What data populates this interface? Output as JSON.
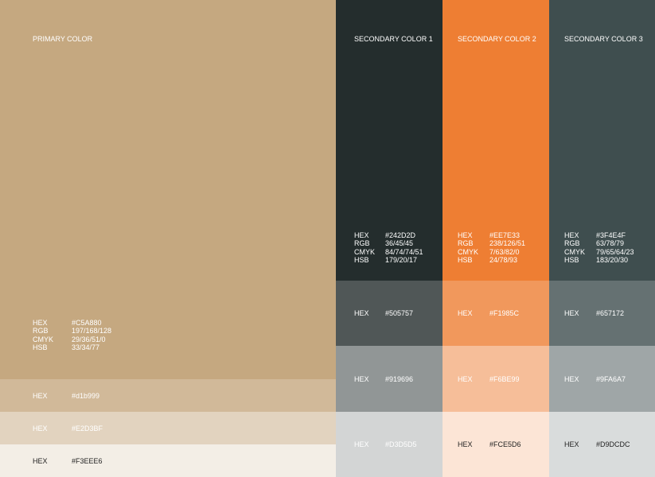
{
  "primary": {
    "title": "PRIMARY COLOR",
    "specs": [
      [
        "HEX",
        "#C5A880"
      ],
      [
        "RGB",
        "197/168/128"
      ],
      [
        "CMYK",
        "29/36/51/0"
      ],
      [
        "HSB",
        "33/34/77"
      ]
    ],
    "tints": [
      [
        "HEX",
        "#d1b999"
      ],
      [
        "HEX",
        "#E2D3BF"
      ],
      [
        "HEX",
        "#F3EEE6"
      ]
    ]
  },
  "secondary": [
    {
      "title": "SECONDARY COLOR 1",
      "specs": [
        [
          "HEX",
          "#242D2D"
        ],
        [
          "RGB",
          "36/45/45"
        ],
        [
          "CMYK",
          "84/74/74/51"
        ],
        [
          "HSB",
          "179/20/17"
        ]
      ],
      "tints": [
        [
          "HEX",
          "#505757"
        ],
        [
          "HEX",
          "#919696"
        ],
        [
          "HEX",
          "#D3D5D5"
        ]
      ]
    },
    {
      "title": "SECONDARY COLOR 2",
      "specs": [
        [
          "HEX",
          "#EE7E33"
        ],
        [
          "RGB",
          "238/126/51"
        ],
        [
          "CMYK",
          "7/63/82/0"
        ],
        [
          "HSB",
          "24/78/93"
        ]
      ],
      "tints": [
        [
          "HEX",
          "#F1985C"
        ],
        [
          "HEX",
          "#F6BE99"
        ],
        [
          "HEX",
          "#FCE5D6"
        ]
      ]
    },
    {
      "title": "SECONDARY COLOR 3",
      "specs": [
        [
          "HEX",
          "#3F4E4F"
        ],
        [
          "RGB",
          "63/78/79"
        ],
        [
          "CMYK",
          "79/65/64/23"
        ],
        [
          "HSB",
          "183/20/30"
        ]
      ],
      "tints": [
        [
          "HEX",
          "#657172"
        ],
        [
          "HEX",
          "#9FA6A7"
        ],
        [
          "HEX",
          "#D9DCDC"
        ]
      ]
    }
  ]
}
